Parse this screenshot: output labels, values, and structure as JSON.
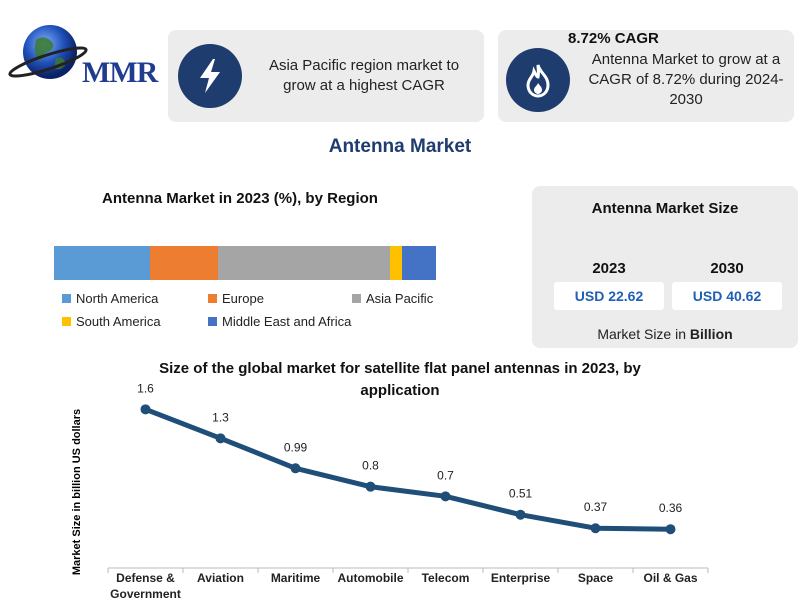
{
  "logo": {
    "text": "MMR"
  },
  "highlights": [
    {
      "icon": "lightning-icon",
      "heading": "",
      "text": "Asia Pacific region market to grow at a highest CAGR"
    },
    {
      "icon": "flame-icon",
      "heading": "8.72% CAGR",
      "text": "Antenna Market to grow at a CAGR of 8.72% during 2024-2030"
    }
  ],
  "main_title": "Antenna Market",
  "market_size": {
    "title": "Antenna Market Size",
    "years": [
      {
        "year": "2023",
        "value": "USD 22.62"
      },
      {
        "year": "2030",
        "value": "USD 40.62"
      }
    ],
    "note_prefix": "Market Size in ",
    "note_unit": "Billion"
  },
  "chart_data": [
    {
      "type": "bar",
      "stacked": true,
      "orientation": "horizontal",
      "title": "Antenna Market in 2023 (%), by Region",
      "series": [
        {
          "name": "North America",
          "values": [
            25
          ],
          "color": "#5b9bd5"
        },
        {
          "name": "Europe",
          "values": [
            18
          ],
          "color": "#ed7d31"
        },
        {
          "name": "Asia Pacific",
          "values": [
            45
          ],
          "color": "#a5a5a5"
        },
        {
          "name": "South America",
          "values": [
            3
          ],
          "color": "#ffc000"
        },
        {
          "name": "Middle East and Africa",
          "values": [
            9
          ],
          "color": "#4472c4"
        }
      ],
      "legend_position": "bottom"
    },
    {
      "type": "line",
      "title": "Size of the global market for satellite flat panel antennas in 2023, by application",
      "xlabel": "",
      "ylabel": "Market Size in billion US dollars",
      "categories": [
        "Defense & Government",
        "Aviation",
        "Maritime",
        "Automobile",
        "Telecom",
        "Enterprise",
        "Space",
        "Oil & Gas"
      ],
      "values": [
        1.6,
        1.3,
        0.99,
        0.8,
        0.7,
        0.51,
        0.37,
        0.36
      ],
      "value_labels": [
        "1.6",
        "1.3",
        "0.99",
        "0.8",
        "0.7",
        "0.51",
        "0.37",
        "0.36"
      ],
      "ylim": [
        0,
        1.8
      ],
      "grid": false,
      "line_color": "#1f4e79"
    }
  ]
}
